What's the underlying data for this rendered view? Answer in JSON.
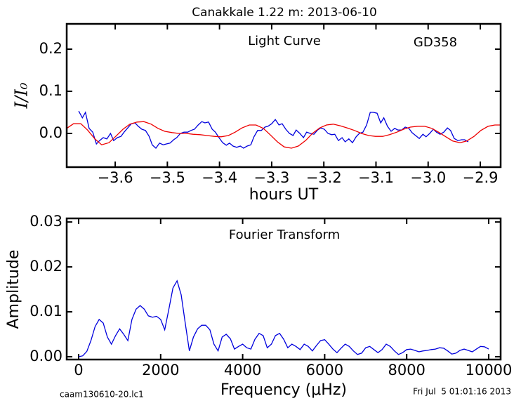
{
  "chart_data": [
    {
      "type": "line",
      "title": "Canakkale 1.22 m:  2013-06-10",
      "annotations": [
        "Light Curve",
        "GD358"
      ],
      "xlabel": "hours UT",
      "ylabel": "I/I₀",
      "xlim": [
        -3.693,
        -2.861
      ],
      "ylim": [
        -0.08,
        0.26
      ],
      "xticks": [
        {
          "value": -3.6,
          "label": "−3.6"
        },
        {
          "value": -3.5,
          "label": "−3.5"
        },
        {
          "value": -3.4,
          "label": "−3.4"
        },
        {
          "value": -3.3,
          "label": "−3.3"
        },
        {
          "value": -3.2,
          "label": "−3.2"
        },
        {
          "value": -3.1,
          "label": "−3.1"
        },
        {
          "value": -3.0,
          "label": "−3.0"
        },
        {
          "value": -2.9,
          "label": "−2.9"
        }
      ],
      "yticks": [
        {
          "value": 0,
          "label": "0.0"
        },
        0.1,
        0.2
      ],
      "series": [
        {
          "color": "#0000dd",
          "x": [
            -3.67,
            -3.663,
            -3.657,
            -3.65,
            -3.643,
            -3.636,
            -3.63,
            -3.623,
            -3.616,
            -3.609,
            -3.603,
            -3.596,
            -3.589,
            -3.583,
            -3.576,
            -3.569,
            -3.562,
            -3.556,
            -3.549,
            -3.542,
            -3.535,
            -3.529,
            -3.522,
            -3.515,
            -3.508,
            -3.502,
            -3.495,
            -3.488,
            -3.482,
            -3.475,
            -3.468,
            -3.461,
            -3.455,
            -3.448,
            -3.441,
            -3.434,
            -3.428,
            -3.421,
            -3.414,
            -3.408,
            -3.401,
            -3.394,
            -3.387,
            -3.381,
            -3.374,
            -3.367,
            -3.36,
            -3.354,
            -3.347,
            -3.34,
            -3.334,
            -3.327,
            -3.32,
            -3.313,
            -3.307,
            -3.3,
            -3.293,
            -3.286,
            -3.28,
            -3.273,
            -3.266,
            -3.259,
            -3.253,
            -3.246,
            -3.239,
            -3.233,
            -3.226,
            -3.219,
            -3.212,
            -3.206,
            -3.199,
            -3.192,
            -3.185,
            -3.179,
            -3.172,
            -3.165,
            -3.159,
            -3.152,
            -3.145,
            -3.138,
            -3.132,
            -3.125,
            -3.118,
            -3.111,
            -3.105,
            -3.098,
            -3.091,
            -3.085,
            -3.078,
            -3.071,
            -3.064,
            -3.058,
            -3.051,
            -3.044,
            -3.037,
            -3.031,
            -3.024,
            -3.017,
            -3.01,
            -3.004,
            -2.997,
            -2.99,
            -2.984,
            -2.977,
            -2.97,
            -2.963,
            -2.957,
            -2.95,
            -2.943,
            -2.936,
            -2.93,
            -2.923
          ],
          "values": [
            0.053,
            0.037,
            0.05,
            0.012,
            0.003,
            -0.025,
            -0.017,
            -0.01,
            -0.013,
            0,
            -0.017,
            -0.01,
            -0.007,
            0.003,
            0.013,
            0.023,
            0.025,
            0.017,
            0.01,
            0.007,
            -0.007,
            -0.027,
            -0.035,
            -0.023,
            -0.027,
            -0.025,
            -0.023,
            -0.015,
            -0.01,
            0,
            0.003,
            0.003,
            0.007,
            0.01,
            0.02,
            0.028,
            0.025,
            0.027,
            0.01,
            0.003,
            -0.01,
            -0.022,
            -0.028,
            -0.023,
            -0.03,
            -0.033,
            -0.03,
            -0.035,
            -0.03,
            -0.027,
            -0.008,
            0.007,
            0.007,
            0.015,
            0.017,
            0.023,
            0.033,
            0.02,
            0.023,
            0.01,
            0,
            -0.005,
            0.008,
            0,
            -0.01,
            0.003,
            0,
            -0.002,
            0.008,
            0.013,
            0.01,
            0,
            -0.003,
            -0.002,
            -0.017,
            -0.01,
            -0.02,
            -0.013,
            -0.022,
            -0.008,
            0,
            0.003,
            0.02,
            0.05,
            0.05,
            0.048,
            0.025,
            0.037,
            0.017,
            0.005,
            0.012,
            0.008,
            0.008,
            0.015,
            0.012,
            0.002,
            -0.005,
            -0.012,
            -0.002,
            -0.008,
            0,
            0.01,
            0.003,
            -0.002,
            0.003,
            0.013,
            0.007,
            -0.012,
            -0.017,
            -0.015,
            -0.015,
            -0.02
          ]
        },
        {
          "color": "#ee0000",
          "x": [
            -3.693,
            -3.68,
            -3.666,
            -3.653,
            -3.639,
            -3.626,
            -3.612,
            -3.599,
            -3.585,
            -3.572,
            -3.558,
            -3.545,
            -3.531,
            -3.518,
            -3.505,
            -3.491,
            -3.478,
            -3.464,
            -3.451,
            -3.437,
            -3.424,
            -3.41,
            -3.397,
            -3.383,
            -3.37,
            -3.357,
            -3.343,
            -3.33,
            -3.316,
            -3.303,
            -3.289,
            -3.276,
            -3.262,
            -3.249,
            -3.235,
            -3.222,
            -3.208,
            -3.195,
            -3.182,
            -3.168,
            -3.155,
            -3.141,
            -3.128,
            -3.114,
            -3.101,
            -3.087,
            -3.074,
            -3.06,
            -3.047,
            -3.034,
            -3.02,
            -3.007,
            -2.993,
            -2.98,
            -2.966,
            -2.953,
            -2.939,
            -2.926,
            -2.912,
            -2.899,
            -2.885,
            -2.872,
            -2.861
          ],
          "values": [
            0.012,
            0.023,
            0.023,
            0.008,
            -0.013,
            -0.027,
            -0.022,
            -0.007,
            0.01,
            0.022,
            0.027,
            0.028,
            0.022,
            0.012,
            0.005,
            0.002,
            0,
            0,
            -0.002,
            -0.003,
            -0.005,
            -0.007,
            -0.008,
            -0.005,
            0.003,
            0.013,
            0.02,
            0.02,
            0.012,
            -0.003,
            -0.02,
            -0.032,
            -0.035,
            -0.03,
            -0.017,
            0,
            0.013,
            0.02,
            0.022,
            0.018,
            0.013,
            0.007,
            0,
            -0.005,
            -0.007,
            -0.007,
            -0.003,
            0.003,
            0.01,
            0.015,
            0.017,
            0.017,
            0.012,
            0.003,
            -0.008,
            -0.018,
            -0.022,
            -0.018,
            -0.007,
            0.007,
            0.017,
            0.02,
            0.02
          ]
        }
      ]
    },
    {
      "type": "line",
      "annotations": [
        "Fourier Transform"
      ],
      "xlabel": "Frequency (μHz)",
      "ylabel": "Amplitude",
      "xlim": [
        -291,
        10291
      ],
      "ylim": [
        -0.000625,
        0.0308
      ],
      "xticks": [
        0,
        2000,
        4000,
        6000,
        8000,
        10000
      ],
      "yticks": [
        {
          "value": 0,
          "label": "0.00"
        },
        {
          "value": 0.01,
          "label": "0.01"
        },
        {
          "value": 0.02,
          "label": "0.02"
        },
        {
          "value": 0.03,
          "label": "0.03"
        }
      ],
      "series": [
        {
          "color": "#0000dd",
          "x": [
            0,
            100,
            200,
            300,
            400,
            500,
            600,
            700,
            800,
            900,
            1000,
            1100,
            1200,
            1300,
            1400,
            1500,
            1600,
            1700,
            1800,
            1900,
            2000,
            2100,
            2200,
            2300,
            2400,
            2500,
            2600,
            2700,
            2800,
            2900,
            3000,
            3100,
            3200,
            3300,
            3400,
            3500,
            3600,
            3700,
            3800,
            3900,
            4000,
            4100,
            4200,
            4300,
            4400,
            4500,
            4600,
            4700,
            4800,
            4900,
            5000,
            5100,
            5200,
            5300,
            5400,
            5500,
            5600,
            5700,
            5800,
            5900,
            6000,
            6100,
            6200,
            6300,
            6400,
            6500,
            6600,
            6700,
            6800,
            6900,
            7000,
            7100,
            7200,
            7300,
            7400,
            7500,
            7600,
            7700,
            7800,
            7900,
            8000,
            8100,
            8200,
            8300,
            8400,
            8500,
            8600,
            8700,
            8800,
            8900,
            9000,
            9100,
            9200,
            9300,
            9400,
            9500,
            9600,
            9700,
            9800,
            9900,
            10000
          ],
          "values": [
            0.0,
            0.0002,
            0.0012,
            0.0036,
            0.0067,
            0.0083,
            0.0075,
            0.0044,
            0.0028,
            0.0047,
            0.0062,
            0.005,
            0.0036,
            0.0083,
            0.0106,
            0.0114,
            0.0106,
            0.0091,
            0.0088,
            0.009,
            0.0083,
            0.006,
            0.0106,
            0.0153,
            0.0169,
            0.0138,
            0.0075,
            0.0013,
            0.0044,
            0.0062,
            0.007,
            0.007,
            0.006,
            0.0028,
            0.0013,
            0.0044,
            0.005,
            0.004,
            0.0017,
            0.0023,
            0.0028,
            0.002,
            0.0017,
            0.0039,
            0.0052,
            0.0047,
            0.002,
            0.0028,
            0.0047,
            0.0052,
            0.0039,
            0.002,
            0.0028,
            0.0023,
            0.0016,
            0.0028,
            0.0023,
            0.0013,
            0.0025,
            0.0036,
            0.0038,
            0.0028,
            0.0017,
            0.0009,
            0.0019,
            0.0028,
            0.0023,
            0.0013,
            0.0005,
            0.0008,
            0.002,
            0.0023,
            0.0016,
            0.0009,
            0.0016,
            0.0028,
            0.0023,
            0.0013,
            0.0005,
            0.0009,
            0.0016,
            0.0017,
            0.0014,
            0.0011,
            0.0013,
            0.0014,
            0.0016,
            0.0017,
            0.002,
            0.0019,
            0.0013,
            0.0006,
            0.0008,
            0.0014,
            0.0017,
            0.0014,
            0.0011,
            0.0017,
            0.0023,
            0.0022,
            0.0017
          ]
        }
      ]
    }
  ],
  "footer": {
    "left": "caam130610-20.lc1",
    "right": "Fri Jul  5 01:01:16 2013"
  }
}
